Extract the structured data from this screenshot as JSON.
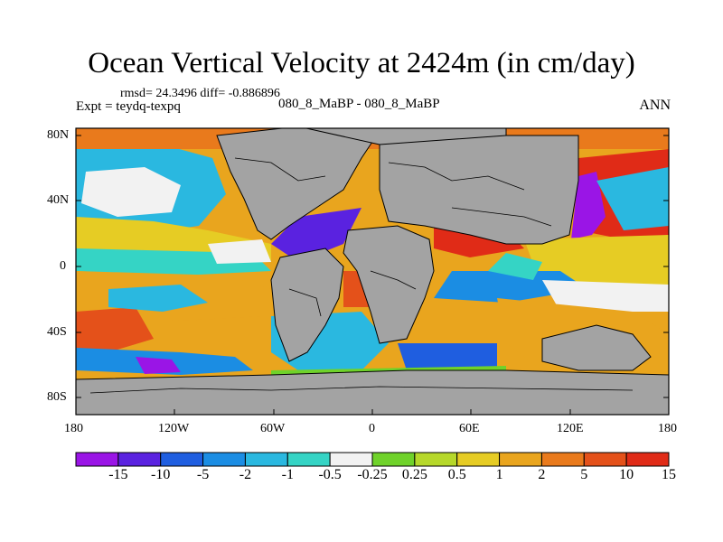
{
  "title": "Ocean Vertical Velocity at 2424m (in cm/day)",
  "stats": "rmsd= 24.3496 diff= -0.886896",
  "expt": "Expt = teydq-texpq",
  "subtitle": "080_8_MaBP - 080_8_MaBP",
  "season": "ANN",
  "map": {
    "variable": "Ocean Vertical Velocity",
    "depth": "2424m",
    "units": "cm/day",
    "land_color": "#a3a3a3",
    "lat_ticks": [
      "80N",
      "40N",
      "0",
      "40S",
      "80S"
    ],
    "lon_ticks": [
      "180",
      "120W",
      "60W",
      "0",
      "60E",
      "120E",
      "180"
    ]
  },
  "colorbar": {
    "colors": [
      "#9a15e6",
      "#5a22e0",
      "#1f5ee0",
      "#1b8de3",
      "#2ab8e0",
      "#35d4c5",
      "#f2f2f2",
      "#6fd22a",
      "#b6d82a",
      "#e6cc24",
      "#e9a51e",
      "#e97a1c",
      "#e4511a",
      "#e02b17"
    ],
    "labels": [
      "-15",
      "-10",
      "-5",
      "-2",
      "-1",
      "-0.5",
      "-0.25",
      "0.25",
      "0.5",
      "1",
      "2",
      "5",
      "10",
      "15"
    ]
  }
}
